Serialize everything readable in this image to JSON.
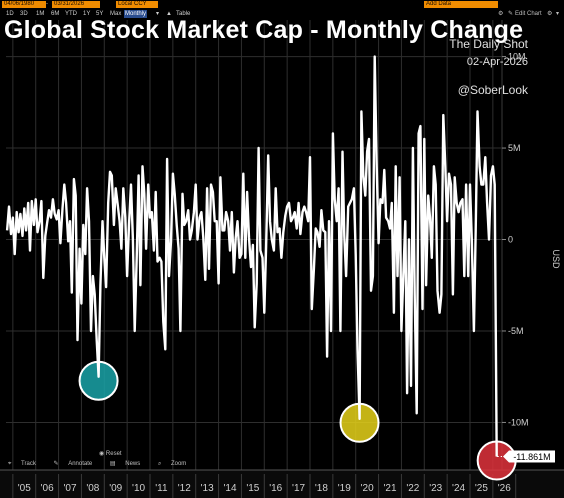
{
  "toolbar": {
    "start_date": "04/06/1980",
    "end_date": "03/31/2026",
    "currency": "Local CCY",
    "table_label": "Table",
    "add_data": "Add Data",
    "edit_chart": "Edit Chart",
    "ranges": [
      "1D",
      "3D",
      "1M",
      "6M",
      "YTD",
      "1Y",
      "5Y",
      "Max"
    ],
    "frequency": "Monthly"
  },
  "title": "Global Stock Market Cap - Monthly Change",
  "source": {
    "name": "The Daily Shot",
    "date": "02-Apr-2026",
    "handle": "@SoberLook"
  },
  "bottom_controls": {
    "reset": "Reset",
    "tools": [
      "Track",
      "Annotate",
      "News",
      "Zoom"
    ]
  },
  "colors": {
    "line": "#ffffff",
    "background": "#000000",
    "gridline": "#2e2e2e",
    "highlight_2008": "#1aa3a8",
    "highlight_2020": "#e6d21a",
    "highlight_2026": "#e0323c",
    "toolbar_accent": "#f08c00"
  },
  "chart_data": {
    "type": "line",
    "title": "Global Stock Market Cap - Monthly Change",
    "ylabel": "USD",
    "y_tick_labels": [
      "10M",
      "5M",
      "0",
      "-5M",
      "-10M"
    ],
    "y_ticks": [
      10,
      5,
      0,
      -5,
      -10
    ],
    "ylim": [
      -12.6,
      12.0
    ],
    "x_tick_labels": [
      "'05",
      "'06",
      "'07",
      "'08",
      "'09",
      "'10",
      "'11",
      "'12",
      "'13",
      "'14",
      "'15",
      "'16",
      "'17",
      "'18",
      "'19",
      "'20",
      "'21",
      "'22",
      "'23",
      "'24",
      "'25",
      "'26"
    ],
    "x_tick_years": [
      2005,
      2006,
      2007,
      2008,
      2009,
      2010,
      2011,
      2012,
      2013,
      2014,
      2015,
      2016,
      2017,
      2018,
      2019,
      2020,
      2021,
      2022,
      2023,
      2024,
      2025,
      2026
    ],
    "unit": "M",
    "grid": true,
    "last_value_label": "-11.861M",
    "last_value": -11.861,
    "highlighted_points": [
      {
        "date": "2008-10",
        "value": -7.5
      },
      {
        "date": "2020-03",
        "value": -9.8
      },
      {
        "date": "2026-03",
        "value": -11.861
      }
    ],
    "series": [
      {
        "values": [
          [
            2004.75,
            0.5
          ],
          [
            2004.83,
            1.8
          ],
          [
            2004.92,
            0.3
          ],
          [
            2005.0,
            1.2
          ],
          [
            2005.08,
            -0.8
          ],
          [
            2005.17,
            1.5
          ],
          [
            2005.25,
            0.4
          ],
          [
            2005.33,
            1.4
          ],
          [
            2005.42,
            0.2
          ],
          [
            2005.5,
            1.7
          ],
          [
            2005.58,
            0.5
          ],
          [
            2005.67,
            2.0
          ],
          [
            2005.75,
            -0.6
          ],
          [
            2005.83,
            2.1
          ],
          [
            2005.92,
            0.8
          ],
          [
            2006.0,
            2.2
          ],
          [
            2006.08,
            0.4
          ],
          [
            2006.17,
            1.0
          ],
          [
            2006.25,
            2.1
          ],
          [
            2006.33,
            -2.1
          ],
          [
            2006.42,
            0.2
          ],
          [
            2006.5,
            0.9
          ],
          [
            2006.58,
            1.6
          ],
          [
            2006.67,
            1.2
          ],
          [
            2006.75,
            2.2
          ],
          [
            2006.83,
            1.4
          ],
          [
            2006.92,
            1.1
          ],
          [
            2007.0,
            1.6
          ],
          [
            2007.08,
            -0.2
          ],
          [
            2007.17,
            1.7
          ],
          [
            2007.25,
            3.0
          ],
          [
            2007.33,
            2.0
          ],
          [
            2007.42,
            -0.1
          ],
          [
            2007.5,
            1.0
          ],
          [
            2007.58,
            -2.9
          ],
          [
            2007.67,
            3.3
          ],
          [
            2007.75,
            2.4
          ],
          [
            2007.83,
            -5.5
          ],
          [
            2007.92,
            -0.5
          ],
          [
            2008.0,
            -3.5
          ],
          [
            2008.08,
            0.8
          ],
          [
            2008.17,
            -0.8
          ],
          [
            2008.25,
            2.8
          ],
          [
            2008.33,
            1.0
          ],
          [
            2008.42,
            -5.0
          ],
          [
            2008.5,
            -2.0
          ],
          [
            2008.58,
            -3.0
          ],
          [
            2008.67,
            -5.5
          ],
          [
            2008.75,
            -7.5
          ],
          [
            2008.83,
            -2.5
          ],
          [
            2008.92,
            1.0
          ],
          [
            2009.0,
            -1.0
          ],
          [
            2009.08,
            -2.6
          ],
          [
            2009.17,
            2.0
          ],
          [
            2009.25,
            3.7
          ],
          [
            2009.33,
            3.5
          ],
          [
            2009.42,
            0.8
          ],
          [
            2009.5,
            2.8
          ],
          [
            2009.58,
            2.0
          ],
          [
            2009.67,
            1.0
          ],
          [
            2009.75,
            -0.5
          ],
          [
            2009.83,
            2.8
          ],
          [
            2009.92,
            1.2
          ],
          [
            2010.0,
            -2.0
          ],
          [
            2010.08,
            0.8
          ],
          [
            2010.17,
            3.0
          ],
          [
            2010.25,
            0.0
          ],
          [
            2010.33,
            -5.0
          ],
          [
            2010.42,
            -1.0
          ],
          [
            2010.5,
            3.5
          ],
          [
            2010.58,
            -2.5
          ],
          [
            2010.67,
            4.0
          ],
          [
            2010.75,
            2.5
          ],
          [
            2010.83,
            -0.5
          ],
          [
            2010.92,
            3.0
          ],
          [
            2011.0,
            1.2
          ],
          [
            2011.08,
            1.5
          ],
          [
            2011.17,
            -0.6
          ],
          [
            2011.25,
            2.6
          ],
          [
            2011.33,
            -1.2
          ],
          [
            2011.42,
            -1.0
          ],
          [
            2011.5,
            -1.2
          ],
          [
            2011.58,
            -4.5
          ],
          [
            2011.67,
            -6.0
          ],
          [
            2011.75,
            4.4
          ],
          [
            2011.83,
            -2.0
          ],
          [
            2011.92,
            -0.1
          ],
          [
            2012.0,
            3.6
          ],
          [
            2012.08,
            2.5
          ],
          [
            2012.17,
            0.8
          ],
          [
            2012.25,
            -0.5
          ],
          [
            2012.33,
            -5.0
          ],
          [
            2012.42,
            2.5
          ],
          [
            2012.5,
            0.8
          ],
          [
            2012.58,
            1.0
          ],
          [
            2012.67,
            1.6
          ],
          [
            2012.75,
            0.0
          ],
          [
            2012.83,
            0.5
          ],
          [
            2012.92,
            1.5
          ],
          [
            2013.0,
            3.0
          ],
          [
            2013.08,
            0.0
          ],
          [
            2013.17,
            1.2
          ],
          [
            2013.25,
            1.5
          ],
          [
            2013.33,
            0.1
          ],
          [
            2013.42,
            -2.2
          ],
          [
            2013.5,
            2.8
          ],
          [
            2013.58,
            -1.6
          ],
          [
            2013.67,
            3.0
          ],
          [
            2013.75,
            2.6
          ],
          [
            2013.83,
            1.0
          ],
          [
            2013.92,
            1.0
          ],
          [
            2014.0,
            -2.4
          ],
          [
            2014.08,
            3.4
          ],
          [
            2014.17,
            0.5
          ],
          [
            2014.25,
            0.5
          ],
          [
            2014.33,
            1.5
          ],
          [
            2014.42,
            1.0
          ],
          [
            2014.5,
            -0.6
          ],
          [
            2014.58,
            1.5
          ],
          [
            2014.67,
            -1.8
          ],
          [
            2014.75,
            0.1
          ],
          [
            2014.83,
            1.0
          ],
          [
            2014.92,
            -1.0
          ],
          [
            2015.0,
            -0.8
          ],
          [
            2015.08,
            3.6
          ],
          [
            2015.17,
            -1.0
          ],
          [
            2015.25,
            2.6
          ],
          [
            2015.33,
            0.1
          ],
          [
            2015.42,
            -1.5
          ],
          [
            2015.5,
            -0.3
          ],
          [
            2015.58,
            -4.8
          ],
          [
            2015.67,
            -2.4
          ],
          [
            2015.75,
            5.0
          ],
          [
            2015.83,
            -0.6
          ],
          [
            2015.92,
            -1.0
          ],
          [
            2016.0,
            -4.0
          ],
          [
            2016.08,
            -0.4
          ],
          [
            2016.17,
            4.6
          ],
          [
            2016.25,
            1.0
          ],
          [
            2016.33,
            0.0
          ],
          [
            2016.42,
            -0.6
          ],
          [
            2016.5,
            2.8
          ],
          [
            2016.58,
            0.4
          ],
          [
            2016.67,
            0.6
          ],
          [
            2016.75,
            -1.0
          ],
          [
            2016.83,
            0.4
          ],
          [
            2016.92,
            1.3
          ],
          [
            2017.0,
            1.8
          ],
          [
            2017.08,
            2.0
          ],
          [
            2017.17,
            1.0
          ],
          [
            2017.25,
            1.2
          ],
          [
            2017.33,
            1.5
          ],
          [
            2017.42,
            0.6
          ],
          [
            2017.5,
            2.0
          ],
          [
            2017.58,
            0.3
          ],
          [
            2017.67,
            1.5
          ],
          [
            2017.75,
            1.8
          ],
          [
            2017.83,
            1.5
          ],
          [
            2017.92,
            1.0
          ],
          [
            2018.0,
            4.5
          ],
          [
            2018.08,
            -3.8
          ],
          [
            2018.17,
            -1.6
          ],
          [
            2018.25,
            0.6
          ],
          [
            2018.33,
            0.4
          ],
          [
            2018.42,
            -0.4
          ],
          [
            2018.5,
            1.6
          ],
          [
            2018.58,
            0.5
          ],
          [
            2018.67,
            0.4
          ],
          [
            2018.75,
            -6.4
          ],
          [
            2018.83,
            1.0
          ],
          [
            2018.92,
            -5.0
          ],
          [
            2019.0,
            5.8
          ],
          [
            2019.08,
            2.2
          ],
          [
            2019.17,
            1.0
          ],
          [
            2019.25,
            2.8
          ],
          [
            2019.33,
            -5.0
          ],
          [
            2019.42,
            4.8
          ],
          [
            2019.5,
            0.2
          ],
          [
            2019.58,
            -2.0
          ],
          [
            2019.67,
            1.8
          ],
          [
            2019.75,
            2.0
          ],
          [
            2019.83,
            2.2
          ],
          [
            2019.92,
            2.8
          ],
          [
            2020.0,
            -0.8
          ],
          [
            2020.08,
            -6.0
          ],
          [
            2020.17,
            -9.8
          ],
          [
            2020.25,
            7.0
          ],
          [
            2020.33,
            3.5
          ],
          [
            2020.42,
            2.4
          ],
          [
            2020.5,
            4.8
          ],
          [
            2020.58,
            5.5
          ],
          [
            2020.67,
            -2.8
          ],
          [
            2020.75,
            -2.0
          ],
          [
            2020.83,
            10.0
          ],
          [
            2020.92,
            4.0
          ],
          [
            2021.0,
            -0.2
          ],
          [
            2021.08,
            2.2
          ],
          [
            2021.17,
            2.0
          ],
          [
            2021.25,
            3.8
          ],
          [
            2021.33,
            1.2
          ],
          [
            2021.42,
            1.0
          ],
          [
            2021.5,
            0.6
          ],
          [
            2021.58,
            2.0
          ],
          [
            2021.67,
            -4.0
          ],
          [
            2021.75,
            4.0
          ],
          [
            2021.83,
            -2.0
          ],
          [
            2021.92,
            3.4
          ],
          [
            2022.0,
            -5.0
          ],
          [
            2022.08,
            -2.0
          ],
          [
            2022.17,
            1.0
          ],
          [
            2022.25,
            -8.4
          ],
          [
            2022.33,
            0.0
          ],
          [
            2022.42,
            -8.0
          ],
          [
            2022.5,
            5.0
          ],
          [
            2022.58,
            -3.0
          ],
          [
            2022.67,
            -9.5
          ],
          [
            2022.75,
            5.8
          ],
          [
            2022.83,
            6.2
          ],
          [
            2022.92,
            -3.8
          ],
          [
            2023.0,
            5.5
          ],
          [
            2023.08,
            -2.5
          ],
          [
            2023.17,
            2.4
          ],
          [
            2023.25,
            1.2
          ],
          [
            2023.33,
            -1.0
          ],
          [
            2023.42,
            4.0
          ],
          [
            2023.5,
            3.0
          ],
          [
            2023.58,
            -2.8
          ],
          [
            2023.67,
            -4.0
          ],
          [
            2023.75,
            -3.0
          ],
          [
            2023.83,
            6.8
          ],
          [
            2023.92,
            4.0
          ],
          [
            2024.0,
            1.0
          ],
          [
            2024.08,
            3.6
          ],
          [
            2024.17,
            3.0
          ],
          [
            2024.25,
            -3.0
          ],
          [
            2024.33,
            3.4
          ],
          [
            2024.42,
            2.0
          ],
          [
            2024.5,
            1.5
          ],
          [
            2024.58,
            2.0
          ],
          [
            2024.67,
            2.2
          ],
          [
            2024.75,
            -2.0
          ],
          [
            2024.83,
            3.0
          ],
          [
            2024.92,
            -2.0
          ],
          [
            2025.0,
            3.0
          ],
          [
            2025.08,
            0.0
          ],
          [
            2025.17,
            -5.0
          ],
          [
            2025.25,
            0.5
          ],
          [
            2025.33,
            7.0
          ],
          [
            2025.42,
            4.0
          ],
          [
            2025.5,
            3.0
          ],
          [
            2025.58,
            3.0
          ],
          [
            2025.67,
            4.5
          ],
          [
            2025.75,
            2.0
          ],
          [
            2025.83,
            0.0
          ],
          [
            2025.92,
            3.5
          ],
          [
            2026.0,
            4.0
          ],
          [
            2026.08,
            3.0
          ],
          [
            2026.17,
            -11.861
          ]
        ]
      }
    ]
  }
}
